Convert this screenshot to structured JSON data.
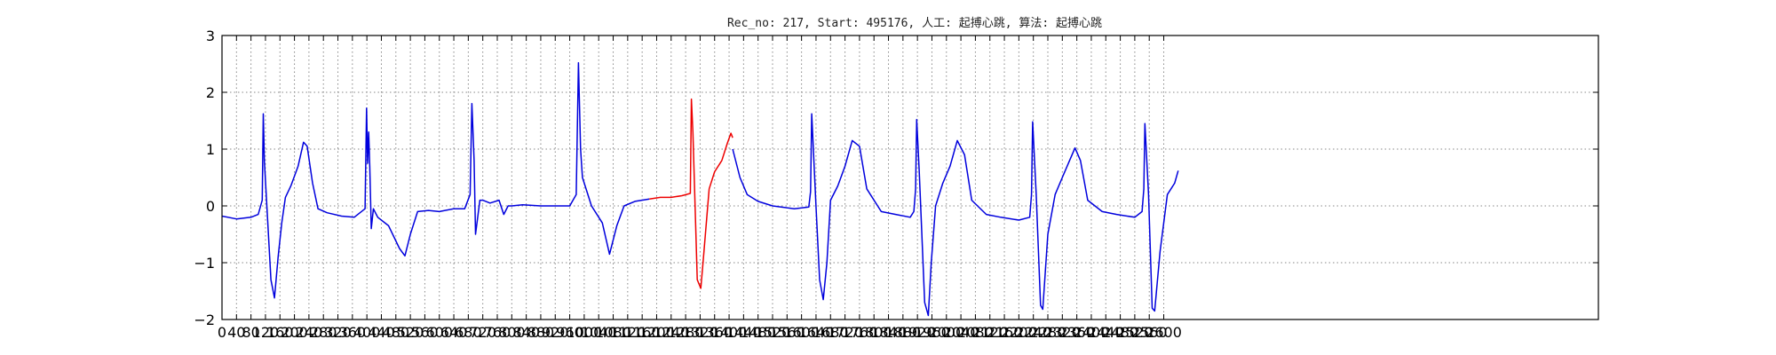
{
  "chart_data": {
    "type": "line",
    "title": "Rec_no: 217, Start: 495176, 人工: 起搏心跳, 算法: 起搏心跳",
    "xlabel": "",
    "ylabel": "",
    "xlim": [
      0,
      3800
    ],
    "ylim": [
      -2,
      3
    ],
    "grid": true,
    "y_ticks": [
      -2,
      -1,
      0,
      1,
      2,
      3
    ],
    "y_tick_labels": [
      "−2",
      "−1",
      "0",
      "1",
      "2",
      "3"
    ],
    "x_ticks": [
      0,
      40,
      80,
      120,
      160,
      200,
      240,
      280,
      320,
      360,
      400,
      440,
      480,
      520,
      560,
      600,
      640,
      680,
      720,
      760,
      800,
      840,
      880,
      920,
      960,
      1000,
      1040,
      1080,
      1120,
      1160,
      1200,
      1240,
      1280,
      1320,
      1360,
      1400,
      1440,
      1480,
      1520,
      1560,
      1600,
      1640,
      1680,
      1720,
      1760,
      1800,
      1840,
      1880,
      1920,
      1960,
      2000,
      2040,
      2080,
      2120,
      2160,
      2200,
      2240,
      2280,
      2320,
      2360,
      2400,
      2440,
      2480,
      2520,
      2560,
      2600
    ],
    "series": [
      {
        "color": "#0000dd",
        "segment": "before",
        "x": [
          0,
          40,
          80,
          100,
          111,
          114,
          117,
          122,
          135,
          145,
          155,
          165,
          175,
          190,
          210,
          225,
          235,
          250,
          265,
          290,
          330,
          365,
          395,
          399,
          402,
          405,
          408,
          412,
          418,
          422,
          430,
          460,
          490,
          505,
          520,
          540,
          570,
          600,
          640,
          670,
          685,
          690,
          696,
          700,
          712,
          720,
          740,
          765,
          778,
          790,
          800,
          830,
          880,
          930,
          960,
          978,
          984,
          990,
          995,
          1020,
          1050,
          1070,
          1090,
          1110,
          1140,
          1180
        ],
        "y": [
          -0.18,
          -0.23,
          -0.2,
          -0.15,
          0.1,
          1.62,
          0.8,
          0.2,
          -1.3,
          -1.62,
          -0.9,
          -0.3,
          0.15,
          0.35,
          0.7,
          1.12,
          1.05,
          0.4,
          -0.05,
          -0.12,
          -0.18,
          -0.2,
          -0.05,
          1.72,
          0.75,
          1.3,
          0.7,
          -0.4,
          -0.05,
          -0.1,
          -0.2,
          -0.35,
          -0.75,
          -0.88,
          -0.5,
          -0.1,
          -0.08,
          -0.1,
          -0.05,
          -0.05,
          0.2,
          1.8,
          0.8,
          -0.5,
          0.1,
          0.1,
          0.05,
          0.1,
          -0.15,
          0.0,
          0.0,
          0.02,
          0.0,
          0.0,
          0.0,
          0.2,
          2.52,
          1.0,
          0.5,
          0.0,
          -0.3,
          -0.85,
          -0.35,
          0.0,
          0.08,
          0.12
        ]
      },
      {
        "color": "#ee0000",
        "segment": "marked-beat",
        "x": [
          1180,
          1210,
          1240,
          1270,
          1293,
          1296,
          1300,
          1312,
          1322,
          1328,
          1345,
          1360,
          1380,
          1395,
          1405,
          1410
        ],
        "y": [
          0.12,
          0.15,
          0.15,
          0.18,
          0.22,
          1.88,
          1.3,
          -1.3,
          -1.45,
          -1.0,
          0.3,
          0.6,
          0.8,
          1.1,
          1.28,
          1.2
        ]
      },
      {
        "color": "#0000dd",
        "segment": "after",
        "x": [
          1410,
          1430,
          1450,
          1480,
          1520,
          1580,
          1620,
          1625,
          1628,
          1640,
          1650,
          1660,
          1670,
          1680,
          1700,
          1720,
          1740,
          1760,
          1780,
          1820,
          1860,
          1900,
          1910,
          1915,
          1918,
          1925,
          1940,
          1950,
          1958,
          1970,
          1990,
          2010,
          2030,
          2050,
          2070,
          2110,
          2150,
          2200,
          2230,
          2235,
          2238,
          2248,
          2260,
          2266,
          2280,
          2300,
          2320,
          2340,
          2355,
          2370,
          2390,
          2430,
          2470,
          2520,
          2540,
          2545,
          2548,
          2558,
          2568,
          2575,
          2590,
          2610,
          2630,
          2640
        ],
        "y": [
          1.0,
          0.5,
          0.2,
          0.08,
          0.0,
          -0.05,
          -0.02,
          0.25,
          1.62,
          0.0,
          -1.3,
          -1.65,
          -1.0,
          0.1,
          0.35,
          0.7,
          1.15,
          1.05,
          0.3,
          -0.1,
          -0.15,
          -0.2,
          -0.1,
          0.3,
          1.52,
          0.6,
          -1.7,
          -1.93,
          -1.0,
          0.0,
          0.4,
          0.7,
          1.15,
          0.9,
          0.1,
          -0.15,
          -0.2,
          -0.25,
          -0.2,
          0.2,
          1.48,
          0.2,
          -1.75,
          -1.82,
          -0.5,
          0.2,
          0.5,
          0.8,
          1.02,
          0.8,
          0.1,
          -0.1,
          -0.15,
          -0.2,
          -0.1,
          0.3,
          1.45,
          0.2,
          -1.8,
          -1.85,
          -0.8,
          0.2,
          0.4,
          0.62
        ]
      }
    ]
  }
}
